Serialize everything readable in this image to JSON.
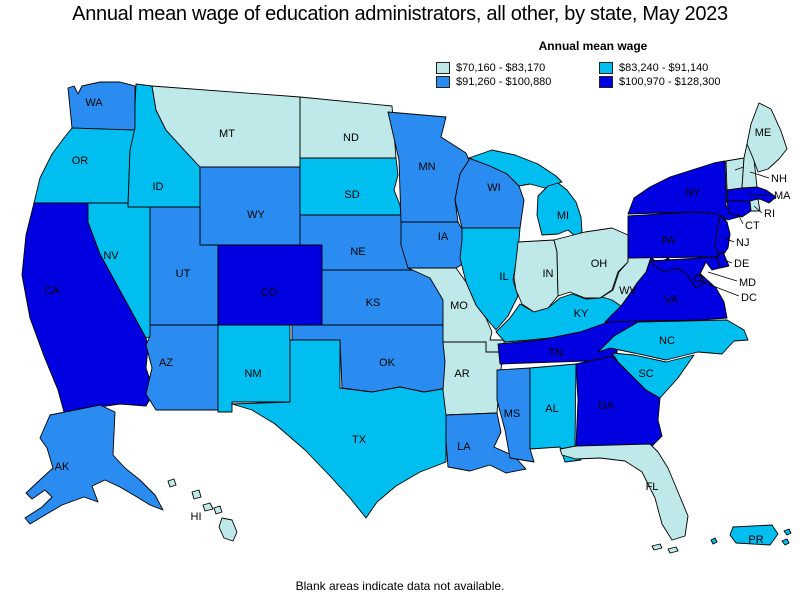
{
  "title": "Annual mean wage of education administrators, all other, by state, May 2023",
  "note": "Blank areas indicate data not available.",
  "legend": {
    "title": "Annual mean wage",
    "items": [
      {
        "label": "$70,160 - $83,170",
        "color": "#bfe8e8"
      },
      {
        "label": "$83,240 - $91,140",
        "color": "#00bff0"
      },
      {
        "label": "$91,260 - $100,880",
        "color": "#2a8cf0"
      },
      {
        "label": "$100,970 - $128,300",
        "color": "#0000e0"
      }
    ]
  },
  "map": {
    "background": "#ffffff",
    "border_color": "#000000",
    "states": [
      {
        "abbr": "WA",
        "band": 2
      },
      {
        "abbr": "OR",
        "band": 1
      },
      {
        "abbr": "CA",
        "band": 3
      },
      {
        "abbr": "NV",
        "band": 1
      },
      {
        "abbr": "ID",
        "band": 1
      },
      {
        "abbr": "MT",
        "band": 0
      },
      {
        "abbr": "WY",
        "band": 2
      },
      {
        "abbr": "UT",
        "band": 2
      },
      {
        "abbr": "CO",
        "band": 3
      },
      {
        "abbr": "AZ",
        "band": 2
      },
      {
        "abbr": "NM",
        "band": 1
      },
      {
        "abbr": "ND",
        "band": 0
      },
      {
        "abbr": "SD",
        "band": 1
      },
      {
        "abbr": "NE",
        "band": 2
      },
      {
        "abbr": "KS",
        "band": 2
      },
      {
        "abbr": "OK",
        "band": 2
      },
      {
        "abbr": "TX",
        "band": 1
      },
      {
        "abbr": "MN",
        "band": 2
      },
      {
        "abbr": "IA",
        "band": 2
      },
      {
        "abbr": "MO",
        "band": 0
      },
      {
        "abbr": "AR",
        "band": 0
      },
      {
        "abbr": "LA",
        "band": 2
      },
      {
        "abbr": "WI",
        "band": 2
      },
      {
        "abbr": "IL",
        "band": 1
      },
      {
        "abbr": "MI",
        "band": 1
      },
      {
        "abbr": "IN",
        "band": 0
      },
      {
        "abbr": "OH",
        "band": 0
      },
      {
        "abbr": "KY",
        "band": 1
      },
      {
        "abbr": "TN",
        "band": 3
      },
      {
        "abbr": "MS",
        "band": 2
      },
      {
        "abbr": "AL",
        "band": 1
      },
      {
        "abbr": "GA",
        "band": 3
      },
      {
        "abbr": "FL",
        "band": 0
      },
      {
        "abbr": "SC",
        "band": 1
      },
      {
        "abbr": "NC",
        "band": 1
      },
      {
        "abbr": "VA",
        "band": 3
      },
      {
        "abbr": "WV",
        "band": 0
      },
      {
        "abbr": "PA",
        "band": 3
      },
      {
        "abbr": "NY",
        "band": 3
      },
      {
        "abbr": "NJ",
        "band": 3
      },
      {
        "abbr": "CT",
        "band": 3
      },
      {
        "abbr": "MA",
        "band": 3
      },
      {
        "abbr": "RI",
        "band": 0
      },
      {
        "abbr": "VT",
        "band": 0
      },
      {
        "abbr": "NH",
        "band": 0
      },
      {
        "abbr": "ME",
        "band": 0
      },
      {
        "abbr": "DE",
        "band": 3
      },
      {
        "abbr": "MD",
        "band": 3
      },
      {
        "abbr": "DC",
        "band": 3
      },
      {
        "abbr": "AK",
        "band": 2
      },
      {
        "abbr": "HI",
        "band": 0
      },
      {
        "abbr": "PR",
        "band": 1
      }
    ]
  },
  "chart_data": {
    "type": "heatmap",
    "title": "Annual mean wage of education administrators, all other, by state, May 2023",
    "legend_title": "Annual mean wage",
    "legend_position": "top-right",
    "bins": [
      {
        "range": "$70,160 - $83,170",
        "color": "#bfe8e8"
      },
      {
        "range": "$83,240 - $91,140",
        "color": "#00bff0"
      },
      {
        "range": "$91,260 - $100,880",
        "color": "#2a8cf0"
      },
      {
        "range": "$100,970 - $128,300",
        "color": "#0000e0"
      }
    ],
    "categories": [
      "WA",
      "OR",
      "CA",
      "NV",
      "ID",
      "MT",
      "WY",
      "UT",
      "CO",
      "AZ",
      "NM",
      "ND",
      "SD",
      "NE",
      "KS",
      "OK",
      "TX",
      "MN",
      "IA",
      "MO",
      "AR",
      "LA",
      "WI",
      "IL",
      "MI",
      "IN",
      "OH",
      "KY",
      "TN",
      "MS",
      "AL",
      "GA",
      "FL",
      "SC",
      "NC",
      "VA",
      "WV",
      "PA",
      "NY",
      "NJ",
      "CT",
      "MA",
      "RI",
      "VT",
      "NH",
      "ME",
      "DE",
      "MD",
      "DC",
      "AK",
      "HI",
      "PR"
    ],
    "values": [
      3,
      2,
      4,
      2,
      2,
      1,
      3,
      3,
      4,
      3,
      2,
      1,
      2,
      3,
      3,
      3,
      2,
      3,
      3,
      1,
      1,
      3,
      3,
      2,
      2,
      1,
      1,
      2,
      4,
      3,
      2,
      4,
      1,
      2,
      2,
      4,
      1,
      4,
      4,
      4,
      4,
      4,
      1,
      1,
      1,
      1,
      4,
      4,
      4,
      3,
      1,
      2
    ],
    "values_note": "value = wage bin number 1-4 matching bins array order",
    "footnote": "Blank areas indicate data not available."
  }
}
